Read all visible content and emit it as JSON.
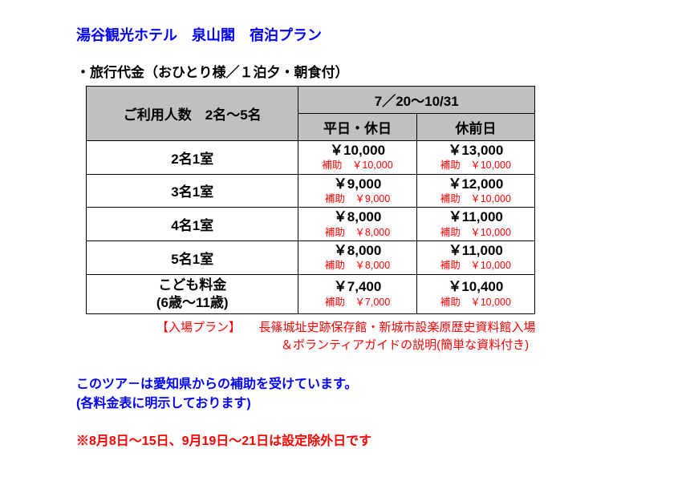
{
  "title": "湯谷観光ホテル　泉山閣　宿泊プラン",
  "subtitle": "・旅行代金（おひとり様／１泊夕・朝食付）",
  "table": {
    "header_left": "ご利用人数　2名～5名",
    "header_period": "7／20～10/31",
    "header_weekday": "平日・休日",
    "header_preholiday": "休前日",
    "rows": [
      {
        "label": "2名1室",
        "weekday_price": "￥10,000",
        "weekday_sub": "補助　￥10,000",
        "pre_price": "￥13,000",
        "pre_sub": "補助　￥10,000"
      },
      {
        "label": "3名1室",
        "weekday_price": "￥9,000",
        "weekday_sub": "補助　￥9,000",
        "pre_price": "￥12,000",
        "pre_sub": "補助　￥10,000"
      },
      {
        "label": "4名1室",
        "weekday_price": "￥8,000",
        "weekday_sub": "補助　￥8,000",
        "pre_price": "￥11,000",
        "pre_sub": "補助　￥10,000"
      },
      {
        "label": "5名1室",
        "weekday_price": "￥8,000",
        "weekday_sub": "補助　￥8,000",
        "pre_price": "￥11,000",
        "pre_sub": "補助　￥10,000"
      },
      {
        "label": "こども料金",
        "label2": "(6歳～11歳)",
        "weekday_price": "￥7,400",
        "weekday_sub": "補助　￥7,000",
        "pre_price": "￥10,400",
        "pre_sub": "補助　￥10,000"
      }
    ]
  },
  "plan_line1": "【入場プラン】　　長篠城址史跡保存館・新城市設楽原歴史資料館入場",
  "plan_line2": "＆ボランティアガイドの説明(簡単な資料付き)",
  "note1": "このツア－は愛知県からの補助を受けています。",
  "note2": "(各料金表に明示しております)",
  "exclusion": "※8月8日～15日、9月19日～21日は設定除外日です"
}
